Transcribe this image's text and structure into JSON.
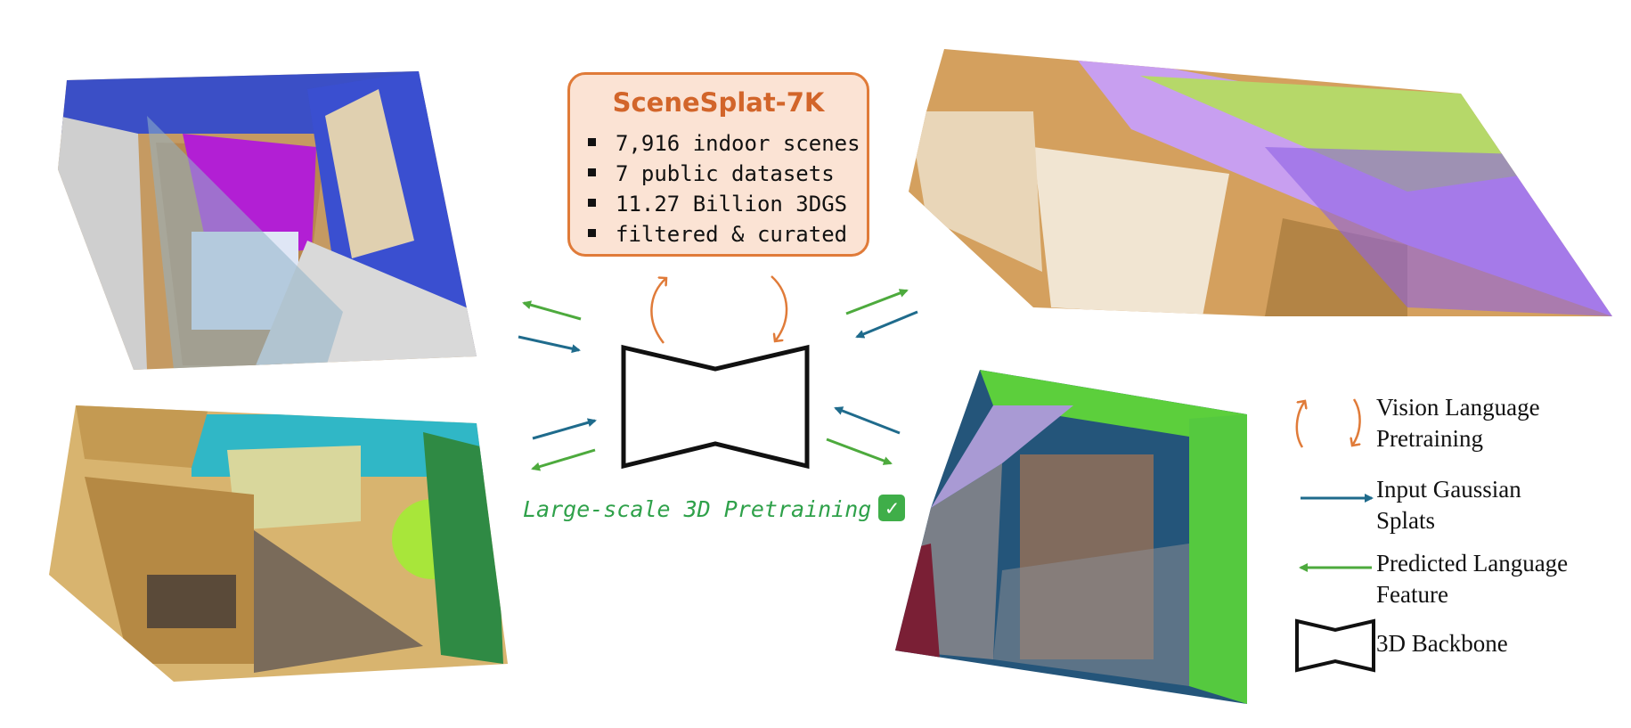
{
  "info_box": {
    "title": "SceneSplat-7K",
    "items": [
      "7,916 indoor scenes",
      "7 public datasets",
      "11.27 Billion 3DGS",
      "filtered & curated"
    ]
  },
  "caption": {
    "text": "Large-scale 3D Pretraining",
    "check_icon": "check-mark-emoji"
  },
  "legend": {
    "vision_language": [
      "Vision Language",
      "Pretraining"
    ],
    "input_splats": [
      "Input Gaussian",
      "Splats"
    ],
    "predicted_feature": [
      "Predicted Language",
      "Feature"
    ],
    "backbone": [
      "3D Backbone"
    ]
  },
  "colors": {
    "orange": "#e07b39",
    "blue": "#1f6b8c",
    "green": "#4daa3d",
    "box_fill": "#fbe3d4",
    "caption_green": "#2fa14a"
  }
}
